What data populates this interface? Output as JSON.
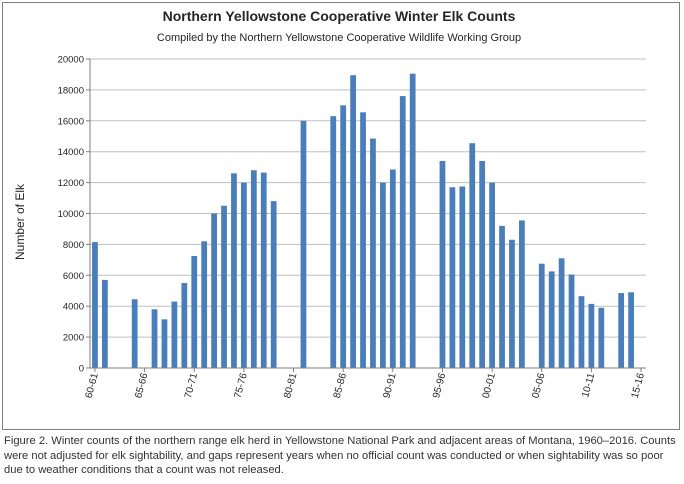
{
  "caption": "Figure 2. Winter counts of the northern range elk herd in Yellowstone National Park and adjacent areas of Montana, 1960–2016. Counts were not adjusted for elk sightability, and gaps represent years when no official count was conducted or when sightability was so poor due to weather conditions that a count was not released.",
  "colors": {
    "bar": "#4a7ebb",
    "grid": "#bfbfbf",
    "axis": "#7f7f7f"
  },
  "chart_data": {
    "type": "bar",
    "title": "Northern Yellowstone Cooperative Winter Elk Counts",
    "subtitle": "Compiled by the Northern Yellowstone Cooperative Wildlife Working Group",
    "xlabel": "",
    "ylabel": "Number of Elk",
    "ylim": [
      0,
      20000
    ],
    "yticks": [
      0,
      2000,
      4000,
      6000,
      8000,
      10000,
      12000,
      14000,
      16000,
      18000,
      20000
    ],
    "grid": true,
    "categories": [
      "60-61",
      "61-62",
      "62-63",
      "63-64",
      "64-65",
      "65-66",
      "66-67",
      "67-68",
      "68-69",
      "69-70",
      "70-71",
      "71-72",
      "72-73",
      "73-74",
      "74-75",
      "75-76",
      "76-77",
      "77-78",
      "78-79",
      "79-80",
      "80-81",
      "81-82",
      "82-83",
      "83-84",
      "84-85",
      "85-86",
      "86-87",
      "87-88",
      "88-89",
      "89-90",
      "90-91",
      "91-92",
      "92-93",
      "93-94",
      "94-95",
      "95-96",
      "96-97",
      "97-98",
      "98-99",
      "99-00",
      "00-01",
      "01-02",
      "02-03",
      "03-04",
      "04-05",
      "05-06",
      "06-07",
      "07-08",
      "08-09",
      "09-10",
      "10-11",
      "11-12",
      "12-13",
      "13-14",
      "14-15",
      "15-16"
    ],
    "tick_labels": [
      "60-61",
      "65-66",
      "70-71",
      "75-76",
      "80-81",
      "85-86",
      "90-91",
      "95-96",
      "00-01",
      "05-06",
      "10-11",
      "15-16"
    ],
    "values": [
      8150,
      5700,
      null,
      null,
      4450,
      null,
      3800,
      3150,
      4300,
      5500,
      7250,
      8200,
      10000,
      10500,
      12600,
      12000,
      12800,
      12650,
      10800,
      null,
      null,
      16000,
      null,
      null,
      16300,
      17000,
      18950,
      16550,
      14850,
      12000,
      12850,
      17600,
      19050,
      null,
      null,
      13400,
      11700,
      11750,
      14550,
      13400,
      12000,
      9200,
      8300,
      9550,
      null,
      6750,
      6250,
      7100,
      6050,
      4650,
      4150,
      3900,
      null,
      4850,
      4900,
      null
    ]
  }
}
